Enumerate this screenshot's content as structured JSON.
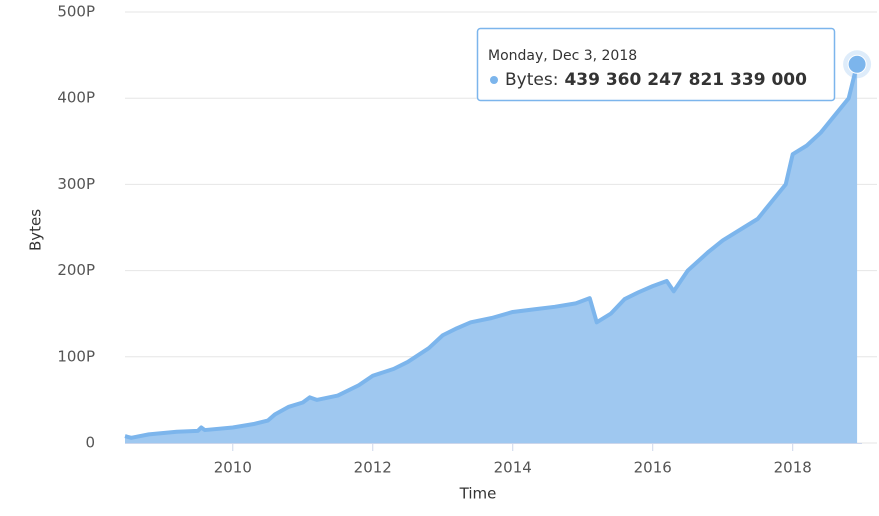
{
  "chart_data": {
    "type": "area",
    "y_label": "Bytes",
    "x_label": "Time",
    "xlim": [
      2008.46,
      2018.99
    ],
    "xticks": [
      2010,
      2012,
      2014,
      2016,
      2018
    ],
    "ylim": [
      0,
      500
    ],
    "yticks": [
      0,
      {
        "value": 100,
        "label": "100P"
      },
      {
        "value": 200,
        "label": "200P"
      },
      {
        "value": 300,
        "label": "300P"
      },
      {
        "value": 400,
        "label": "400P"
      },
      {
        "value": 500,
        "label": "500P"
      }
    ],
    "grid": true,
    "x": [
      2008.46,
      2008.55,
      2008.8,
      2009.2,
      2009.5,
      2009.55,
      2009.6,
      2010.0,
      2010.3,
      2010.5,
      2010.6,
      2010.8,
      2011.0,
      2011.1,
      2011.2,
      2011.5,
      2011.8,
      2012.0,
      2012.3,
      2012.5,
      2012.8,
      2013.0,
      2013.2,
      2013.4,
      2013.7,
      2014.0,
      2014.3,
      2014.6,
      2014.9,
      2015.1,
      2015.2,
      2015.4,
      2015.6,
      2015.8,
      2016.0,
      2016.2,
      2016.3,
      2016.5,
      2016.8,
      2017.0,
      2017.3,
      2017.5,
      2017.7,
      2017.9,
      2018.0,
      2018.2,
      2018.4,
      2018.6,
      2018.8,
      2018.92
    ],
    "series": [
      {
        "name": "Bytes:",
        "color": "#7cb5ec",
        "fill": "#9fc8f0",
        "values": [
          8,
          6,
          10,
          13,
          14,
          18,
          15,
          18,
          22,
          26,
          33,
          42,
          47,
          53,
          50,
          55,
          67,
          78,
          86,
          94,
          110,
          125,
          133,
          140,
          145,
          152,
          155,
          158,
          162,
          168,
          140,
          150,
          167,
          175,
          182,
          188,
          176,
          200,
          222,
          235,
          250,
          260,
          280,
          300,
          335,
          345,
          360,
          380,
          400,
          439.36
        ]
      }
    ],
    "tooltip": {
      "date": "Monday, Dec 3, 2018",
      "value_label": "439 360 247 821 339 000",
      "index": 49
    }
  }
}
